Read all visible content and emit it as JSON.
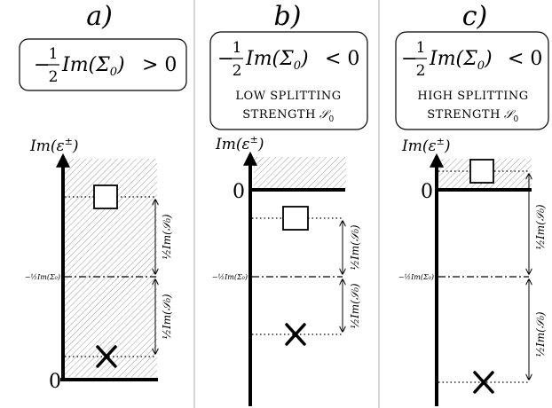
{
  "panels": [
    {
      "letter": "a)",
      "box_prefix": "−",
      "box_num": "1",
      "box_den": "2",
      "box_fn": "Im(Σ",
      "box_sub": "0",
      "box_close": ")",
      "box_rel": "> 0",
      "caption_line1": "",
      "caption_line2": "",
      "caption_S": "",
      "caption_Ssub": "",
      "yaxis_label": "Im(ε",
      "yaxis_sup": "±",
      "yaxis_close": ")",
      "zero_label": "0",
      "mid_label": "−½Im(Σ₀)",
      "upper_arrow_label": "½Im(𝒮₀)",
      "lower_arrow_label": "½Im(𝒮₀)"
    },
    {
      "letter": "b)",
      "box_prefix": "−",
      "box_num": "1",
      "box_den": "2",
      "box_fn": "Im(Σ",
      "box_sub": "0",
      "box_close": ")",
      "box_rel": "< 0",
      "caption_line1": "LOW SPLITTING",
      "caption_line2": "STRENGTH",
      "caption_S": "𝒮",
      "caption_Ssub": "0",
      "yaxis_label": "Im(ε",
      "yaxis_sup": "±",
      "yaxis_close": ")",
      "zero_label": "0",
      "mid_label": "−½Im(Σ₀)",
      "upper_arrow_label": "½Im(𝒮₀)",
      "lower_arrow_label": "½Im(𝒮₀)"
    },
    {
      "letter": "c)",
      "box_prefix": "−",
      "box_num": "1",
      "box_den": "2",
      "box_fn": "Im(Σ",
      "box_sub": "0",
      "box_close": ")",
      "box_rel": "< 0",
      "caption_line1": "HIGH SPLITTING",
      "caption_line2": "STRENGTH",
      "caption_S": "𝒮",
      "caption_Ssub": "0",
      "yaxis_label": "Im(ε",
      "yaxis_sup": "±",
      "yaxis_close": ")",
      "zero_label": "0",
      "mid_label": "−½Im(Σ₀)",
      "upper_arrow_label": "½Im(𝒮₀)",
      "lower_arrow_label": "½Im(𝒮₀)"
    }
  ],
  "markers": {
    "upper": "square-marker",
    "lower": "cross-marker"
  },
  "colors": {
    "divider": "#c8c8c8",
    "hatch": "#9a9a9a",
    "ink": "#000000"
  }
}
